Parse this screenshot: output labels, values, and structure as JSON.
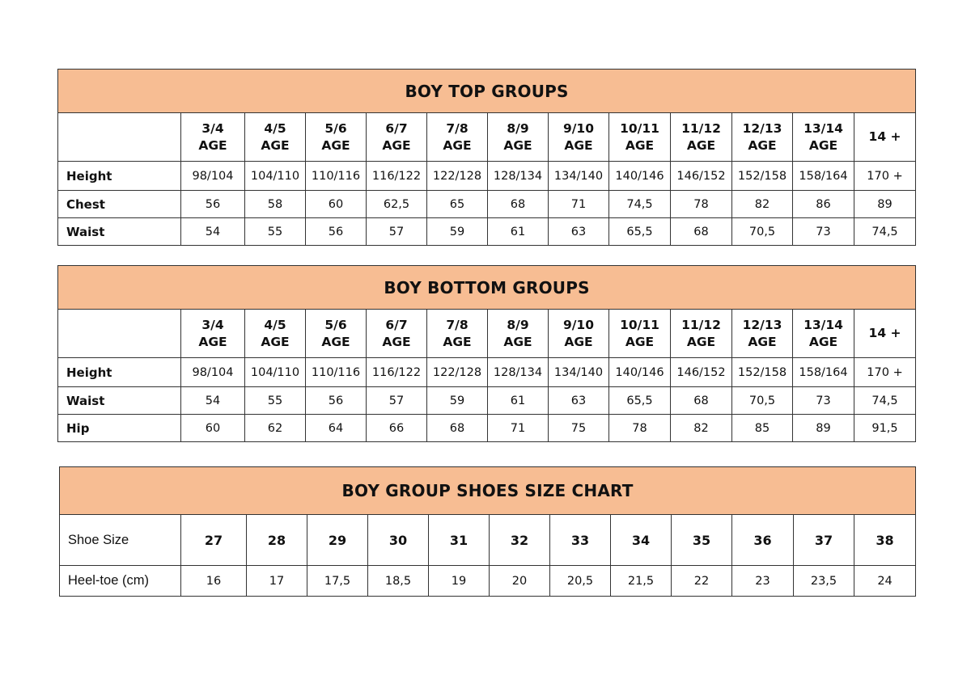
{
  "colors": {
    "header_fill": "#f7bd93",
    "border": "#333333"
  },
  "top": {
    "title": "BOY TOP GROUPS",
    "columns": [
      [
        "3/4",
        "AGE"
      ],
      [
        "4/5",
        "AGE"
      ],
      [
        "5/6",
        "AGE"
      ],
      [
        "6/7",
        "AGE"
      ],
      [
        "7/8",
        "AGE"
      ],
      [
        "8/9",
        "AGE"
      ],
      [
        "9/10",
        "AGE"
      ],
      [
        "10/11",
        "AGE"
      ],
      [
        "11/12",
        "AGE"
      ],
      [
        "12/13",
        "AGE"
      ],
      [
        "13/14",
        "AGE"
      ],
      [
        "14 +"
      ]
    ],
    "rows": [
      {
        "label": "Height",
        "values": [
          "98/104",
          "104/110",
          "110/116",
          "116/122",
          "122/128",
          "128/134",
          "134/140",
          "140/146",
          "146/152",
          "152/158",
          "158/164",
          "170 +"
        ]
      },
      {
        "label": "Chest",
        "values": [
          "56",
          "58",
          "60",
          "62,5",
          "65",
          "68",
          "71",
          "74,5",
          "78",
          "82",
          "86",
          "89"
        ]
      },
      {
        "label": "Waist",
        "values": [
          "54",
          "55",
          "56",
          "57",
          "59",
          "61",
          "63",
          "65,5",
          "68",
          "70,5",
          "73",
          "74,5"
        ]
      }
    ]
  },
  "bottom": {
    "title": "BOY BOTTOM GROUPS",
    "columns": [
      [
        "3/4",
        "AGE"
      ],
      [
        "4/5",
        "AGE"
      ],
      [
        "5/6",
        "AGE"
      ],
      [
        "6/7",
        "AGE"
      ],
      [
        "7/8",
        "AGE"
      ],
      [
        "8/9",
        "AGE"
      ],
      [
        "9/10",
        "AGE"
      ],
      [
        "10/11",
        "AGE"
      ],
      [
        "11/12",
        "AGE"
      ],
      [
        "12/13",
        "AGE"
      ],
      [
        "13/14",
        "AGE"
      ],
      [
        "14 +"
      ]
    ],
    "rows": [
      {
        "label": "Height",
        "values": [
          "98/104",
          "104/110",
          "110/116",
          "116/122",
          "122/128",
          "128/134",
          "134/140",
          "140/146",
          "146/152",
          "152/158",
          "158/164",
          "170 +"
        ]
      },
      {
        "label": "Waist",
        "values": [
          "54",
          "55",
          "56",
          "57",
          "59",
          "61",
          "63",
          "65,5",
          "68",
          "70,5",
          "73",
          "74,5"
        ]
      },
      {
        "label": "Hip",
        "values": [
          "60",
          "62",
          "64",
          "66",
          "68",
          "71",
          "75",
          "78",
          "82",
          "85",
          "89",
          "91,5"
        ]
      }
    ]
  },
  "shoes": {
    "title": "BOY GROUP SHOES SIZE CHART",
    "size_label": "Shoe Size",
    "sizes": [
      "27",
      "28",
      "29",
      "30",
      "31",
      "32",
      "33",
      "34",
      "35",
      "36",
      "37",
      "38"
    ],
    "heel_label": "Heel-toe (cm)",
    "heel_toe": [
      "16",
      "17",
      "17,5",
      "18,5",
      "19",
      "20",
      "20,5",
      "21,5",
      "22",
      "23",
      "23,5",
      "24"
    ]
  }
}
